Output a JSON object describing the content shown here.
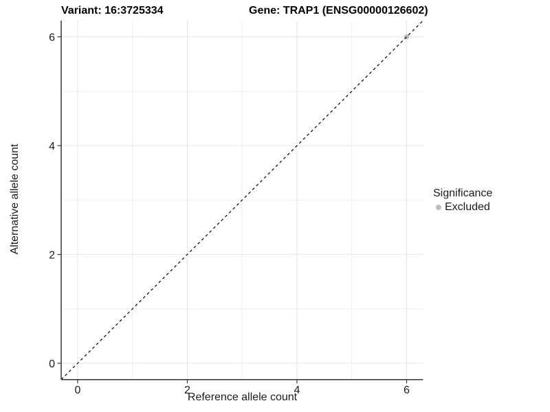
{
  "page": {
    "background": "#ffffff"
  },
  "chart_data": {
    "type": "scatter",
    "titles": {
      "left": "Variant: 16:3725334",
      "right": "Gene: TRAP1 (ENSG00000126602)"
    },
    "xlabel": "Reference allele count",
    "ylabel": "Alternative allele count",
    "xlim": [
      -0.3,
      6.3
    ],
    "ylim": [
      -0.3,
      6.3
    ],
    "x_ticks": [
      0,
      2,
      4,
      6
    ],
    "y_ticks": [
      0,
      2,
      4,
      6
    ],
    "minor_gridlines": [
      1,
      3,
      5
    ],
    "grid": {
      "show": true,
      "major_color": "#e4e4e4",
      "minor_color": "#efefef"
    },
    "axis": {
      "line_color": "#404040",
      "tick_color": "#333333",
      "tick_label_color": "#1a1a1a"
    },
    "identity_line": {
      "type": "identity",
      "line_style": "dashed",
      "color": "#000000"
    },
    "series": [
      {
        "name": "Excluded",
        "color": "#b5b5b5",
        "marker": "circle",
        "points": [
          {
            "x": 6,
            "y": 6
          }
        ]
      }
    ],
    "legend": {
      "title": "Significance",
      "position": "right",
      "items": [
        {
          "label": "Excluded",
          "color": "#bebebe"
        }
      ]
    }
  }
}
